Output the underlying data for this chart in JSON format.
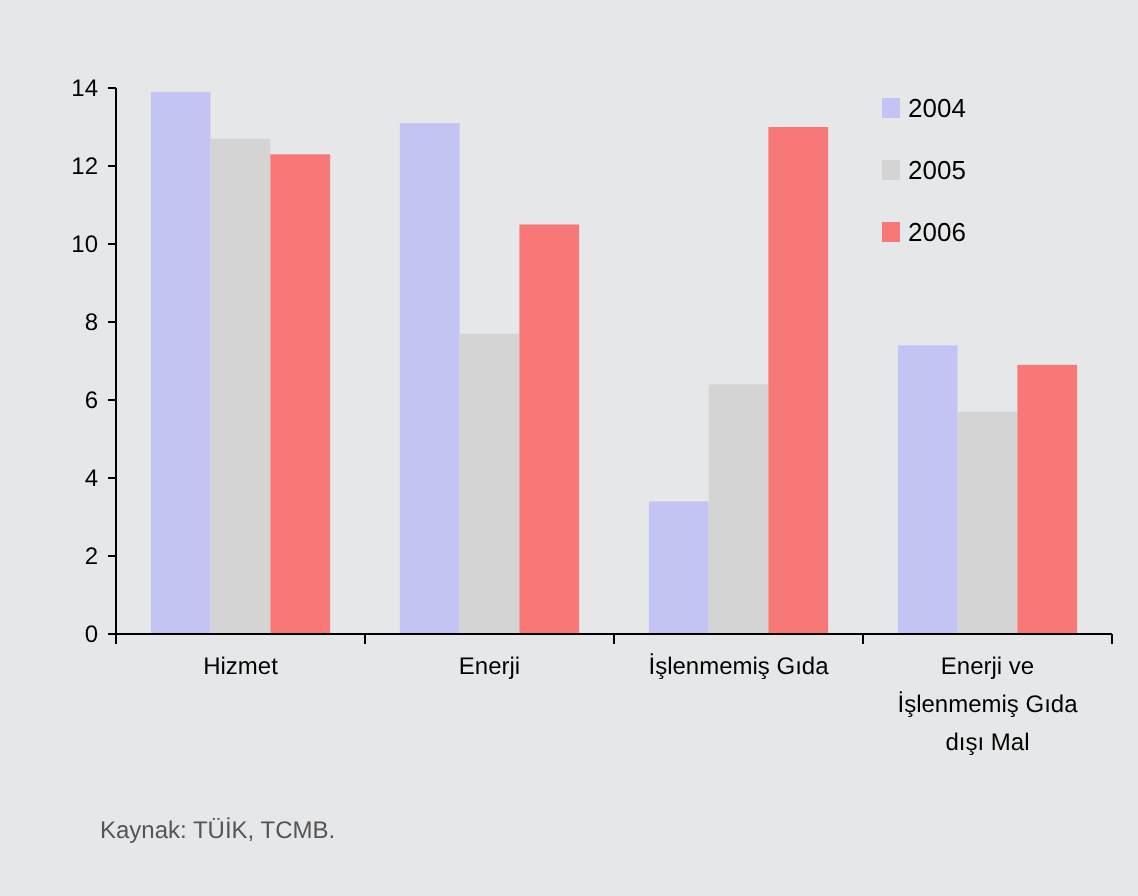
{
  "chart_data": {
    "type": "bar",
    "categories": [
      "Hizmet",
      "Enerji",
      "İşlenmemiş  Gıda",
      "Enerji ve İşlenmemiş Gıda dışı Mal"
    ],
    "series": [
      {
        "name": "2004",
        "color": "#c4c4f4",
        "values": [
          13.9,
          13.1,
          3.4,
          7.4
        ]
      },
      {
        "name": "2005",
        "color": "#d4d4d4",
        "values": [
          12.7,
          7.7,
          6.4,
          5.7
        ]
      },
      {
        "name": "2006",
        "color": "#f87878",
        "values": [
          12.3,
          10.5,
          13.0,
          6.9
        ]
      }
    ],
    "ylim": [
      0,
      14
    ],
    "yticks": [
      0,
      2,
      4,
      6,
      8,
      10,
      12,
      14
    ],
    "grid": false,
    "legend": "top right",
    "annotations": [
      "Kaynak: TÜİK, TCMB."
    ]
  }
}
